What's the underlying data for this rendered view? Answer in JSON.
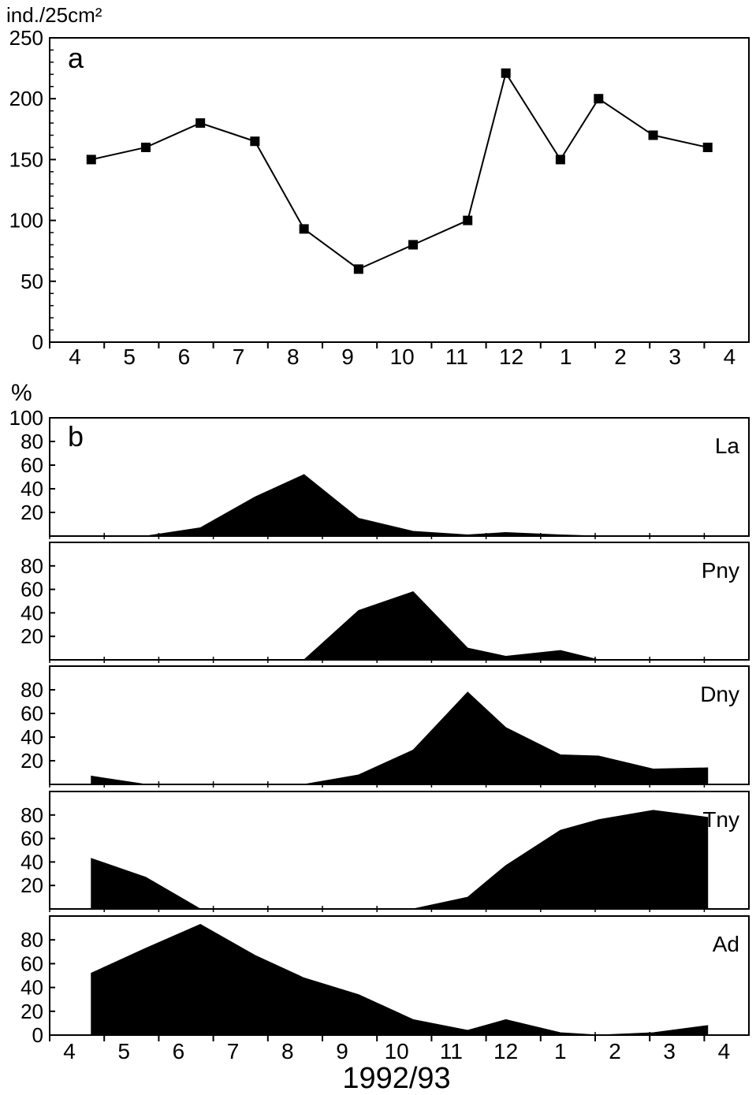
{
  "chart_data": [
    {
      "panel": "a",
      "type": "line",
      "ylabel": "ind./25cm²",
      "ylim": [
        0,
        250
      ],
      "yticks": [
        0,
        50,
        100,
        150,
        200,
        250
      ],
      "xticklabels": [
        "4",
        "5",
        "6",
        "7",
        "8",
        "9",
        "10",
        "11",
        "12",
        "1",
        "2",
        "3",
        "4"
      ],
      "xlim": [
        4,
        16
      ],
      "marker": "square",
      "points": [
        {
          "x": 4.3,
          "y": 150
        },
        {
          "x": 5.3,
          "y": 160
        },
        {
          "x": 6.3,
          "y": 180
        },
        {
          "x": 7.3,
          "y": 165
        },
        {
          "x": 8.2,
          "y": 93
        },
        {
          "x": 9.2,
          "y": 60
        },
        {
          "x": 10.2,
          "y": 80
        },
        {
          "x": 11.2,
          "y": 100
        },
        {
          "x": 11.9,
          "y": 221
        },
        {
          "x": 12.9,
          "y": 150
        },
        {
          "x": 13.6,
          "y": 200
        },
        {
          "x": 14.6,
          "y": 170
        },
        {
          "x": 15.6,
          "y": 160
        }
      ]
    },
    {
      "panel": "b",
      "type": "area",
      "ylabel": "%",
      "ylim": [
        0,
        100
      ],
      "xticklabels": [
        "4",
        "5",
        "6",
        "7",
        "8",
        "9",
        "10",
        "11",
        "12",
        "1",
        "2",
        "3",
        "4"
      ],
      "xlabel": "1992/93",
      "xlim": [
        4,
        16
      ],
      "series": [
        {
          "name": "La",
          "yticks": [
            20,
            40,
            60,
            80,
            100
          ],
          "x": [
            4.3,
            5.3,
            6.3,
            7.3,
            8.2,
            9.2,
            10.2,
            11.2,
            11.9,
            12.9,
            13.6,
            14.6,
            15.6
          ],
          "values": [
            0,
            0,
            7,
            33,
            52,
            15,
            4,
            1,
            3,
            1,
            0,
            0,
            0
          ]
        },
        {
          "name": "Pny",
          "yticks": [
            20,
            40,
            60,
            80
          ],
          "x": [
            4.3,
            5.3,
            6.3,
            7.3,
            8.2,
            9.2,
            10.2,
            11.2,
            11.9,
            12.9,
            13.6,
            14.6,
            15.6
          ],
          "values": [
            0,
            0,
            0,
            0,
            0,
            42,
            58,
            10,
            3,
            8,
            0,
            0,
            0
          ]
        },
        {
          "name": "Dny",
          "yticks": [
            20,
            40,
            60,
            80
          ],
          "x": [
            4.3,
            5.3,
            6.3,
            7.3,
            8.2,
            9.2,
            10.2,
            11.2,
            11.9,
            12.9,
            13.6,
            14.6,
            15.6
          ],
          "values": [
            7,
            0,
            0,
            0,
            0,
            8,
            29,
            78,
            48,
            25,
            24,
            13,
            14
          ]
        },
        {
          "name": "Tny",
          "yticks": [
            20,
            40,
            60,
            80
          ],
          "x": [
            4.3,
            5.3,
            6.3,
            7.3,
            8.2,
            9.2,
            10.2,
            11.2,
            11.9,
            12.9,
            13.6,
            14.6,
            15.6
          ],
          "values": [
            43,
            27,
            0,
            0,
            0,
            0,
            0,
            10,
            37,
            67,
            76,
            84,
            78
          ]
        },
        {
          "name": "Ad",
          "yticks": [
            0,
            20,
            40,
            60,
            80
          ],
          "x": [
            4.3,
            5.3,
            6.3,
            7.3,
            8.2,
            9.2,
            10.2,
            11.2,
            11.9,
            12.9,
            13.6,
            14.6,
            15.6
          ],
          "values": [
            52,
            73,
            93,
            67,
            48,
            34,
            13,
            4,
            13,
            2,
            0,
            2,
            8
          ]
        }
      ]
    }
  ]
}
